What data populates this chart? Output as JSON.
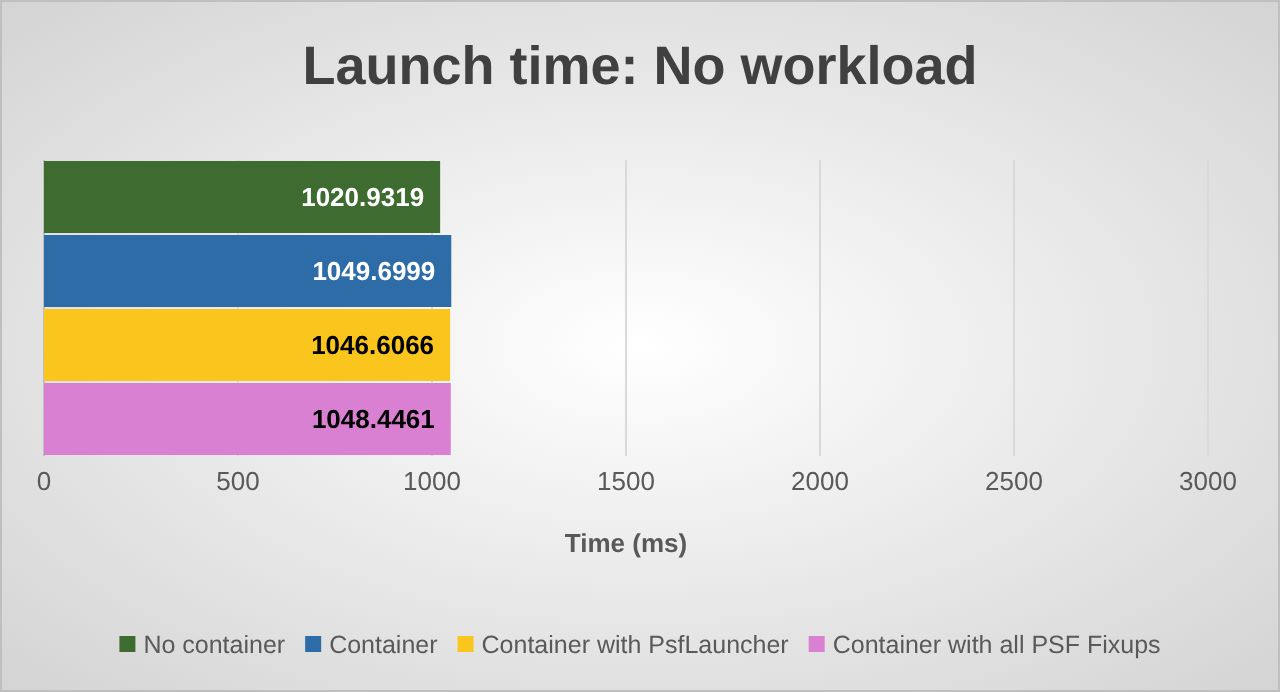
{
  "chart_data": {
    "type": "bar",
    "orientation": "horizontal",
    "title": "Launch time: No workload",
    "xlabel": "Time (ms)",
    "categories": [
      null
    ],
    "series": [
      {
        "name": "No container",
        "color": "#3e6b2f",
        "values": [
          1020.9319
        ]
      },
      {
        "name": "Container",
        "color": "#2e6ca8",
        "values": [
          1049.6999
        ]
      },
      {
        "name": "Container with PsfLauncher",
        "color": "#fac51c",
        "values": [
          1046.6066
        ]
      },
      {
        "name": "Container with all PSF Fixups",
        "color": "#da80d2",
        "values": [
          1048.4461
        ]
      }
    ],
    "xlim": [
      0,
      3000
    ],
    "xticks": [
      0,
      500,
      1000,
      1500,
      2000,
      2500,
      3000
    ],
    "grid": "x",
    "legend": "bottom",
    "data_labels": true
  }
}
